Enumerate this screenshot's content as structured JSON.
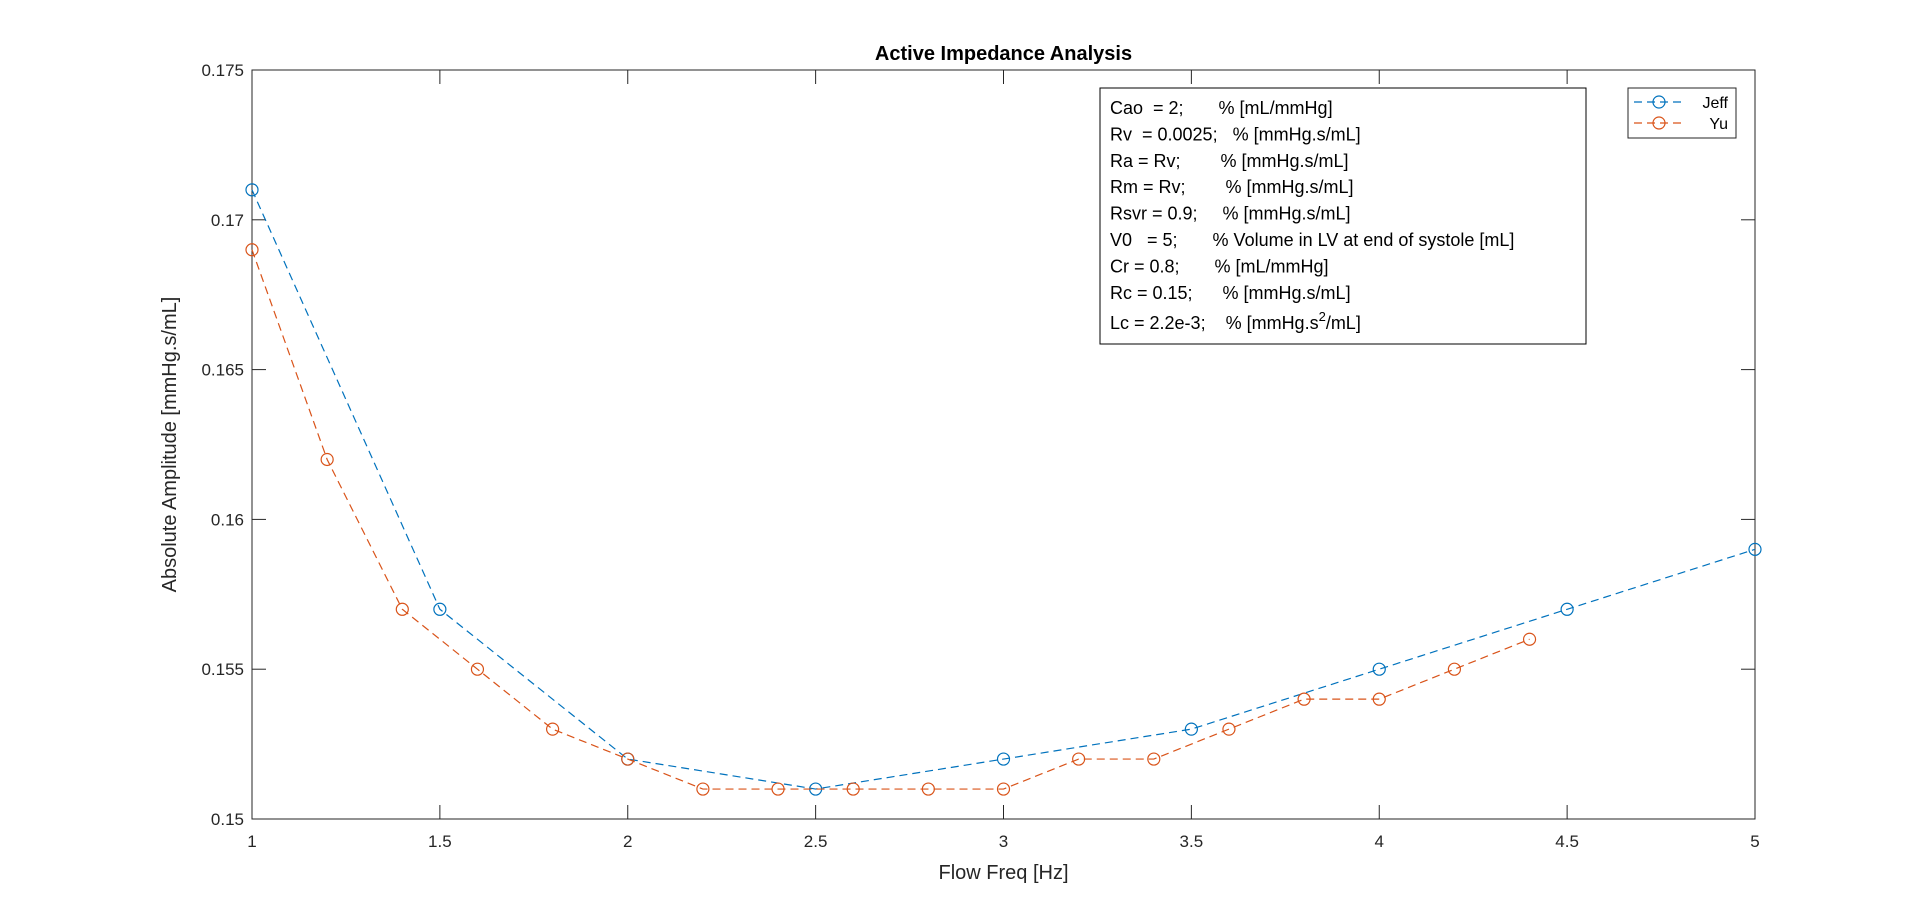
{
  "chart_data": {
    "type": "line",
    "title": "Active Impedance Analysis",
    "xlabel": "Flow Freq [Hz]",
    "ylabel": "Absolute Amplitude [mmHg.s/mL]",
    "xlim": [
      1,
      5
    ],
    "ylim": [
      0.15,
      0.175
    ],
    "xticks": [
      1,
      1.5,
      2,
      2.5,
      3,
      3.5,
      4,
      4.5,
      5
    ],
    "xtick_labels": [
      "1",
      "1.5",
      "2",
      "2.5",
      "3",
      "3.5",
      "4",
      "4.5",
      "5"
    ],
    "yticks": [
      0.15,
      0.155,
      0.16,
      0.165,
      0.17,
      0.175
    ],
    "ytick_labels": [
      "0.15",
      "0.155",
      "0.16",
      "0.165",
      "0.17",
      "0.175"
    ],
    "grid": false,
    "legend_position": "top-right",
    "series": [
      {
        "name": "Jeff",
        "color": "#0072BD",
        "line_style": "dashed",
        "marker": "circle",
        "x": [
          1,
          1.5,
          2,
          2.5,
          3,
          3.5,
          4,
          4.5,
          5
        ],
        "y": [
          0.171,
          0.157,
          0.152,
          0.151,
          0.152,
          0.153,
          0.155,
          0.157,
          0.159
        ]
      },
      {
        "name": "Yu",
        "color": "#D95319",
        "line_style": "dashed",
        "marker": "circle",
        "x": [
          1,
          1.2,
          1.4,
          1.6,
          1.8,
          2,
          2.2,
          2.4,
          2.6,
          2.8,
          3,
          3.2,
          3.4,
          3.6,
          3.8,
          4,
          4.2,
          4.4
        ],
        "y": [
          0.169,
          0.162,
          0.157,
          0.155,
          0.153,
          0.152,
          0.151,
          0.151,
          0.151,
          0.151,
          0.151,
          0.152,
          0.152,
          0.153,
          0.154,
          0.154,
          0.155,
          0.156
        ]
      }
    ],
    "annotation": [
      "Cao  = 2;       % [mL/mmHg]",
      "Rv  = 0.0025;   % [mmHg.s/mL]",
      "Ra = Rv;        % [mmHg.s/mL]",
      "Rm = Rv;        % [mmHg.s/mL]",
      "Rsvr = 0.9;     % [mmHg.s/mL]",
      "V0   = 5;       % Volume in LV at end of systole [mL]",
      "Cr = 0.8;       % [mL/mmHg]",
      "Rc = 0.15;      % [mmHg.s/mL]"
    ],
    "annotation_last": {
      "before": "Lc = 2.2e-3;    % [mmHg.s",
      "sup": "2",
      "after": "/mL]"
    }
  }
}
